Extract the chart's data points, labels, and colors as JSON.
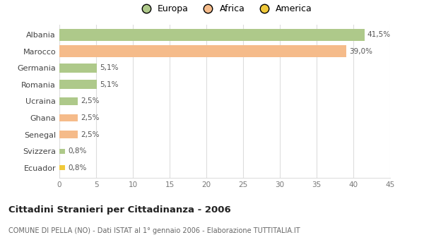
{
  "categories": [
    "Albania",
    "Marocco",
    "Germania",
    "Romania",
    "Ucraina",
    "Ghana",
    "Senegal",
    "Svizzera",
    "Ecuador"
  ],
  "values": [
    41.5,
    39.0,
    5.1,
    5.1,
    2.5,
    2.5,
    2.5,
    0.8,
    0.8
  ],
  "labels": [
    "41,5%",
    "39,0%",
    "5,1%",
    "5,1%",
    "2,5%",
    "2,5%",
    "2,5%",
    "0,8%",
    "0,8%"
  ],
  "colors": [
    "#aec98a",
    "#f5bb8a",
    "#aec98a",
    "#aec98a",
    "#aec98a",
    "#f5bb8a",
    "#f5bb8a",
    "#aec98a",
    "#f0c93a"
  ],
  "legend_labels": [
    "Europa",
    "Africa",
    "America"
  ],
  "legend_colors": [
    "#aec98a",
    "#f5bb8a",
    "#f0c93a"
  ],
  "xlim": [
    0,
    45
  ],
  "xticks": [
    0,
    5,
    10,
    15,
    20,
    25,
    30,
    35,
    40,
    45
  ],
  "title": "Cittadini Stranieri per Cittadinanza - 2006",
  "subtitle": "COMUNE DI PELLA (NO) - Dati ISTAT al 1° gennaio 2006 - Elaborazione TUTTITALIA.IT",
  "bg_color": "#ffffff",
  "grid_color": "#dddddd"
}
